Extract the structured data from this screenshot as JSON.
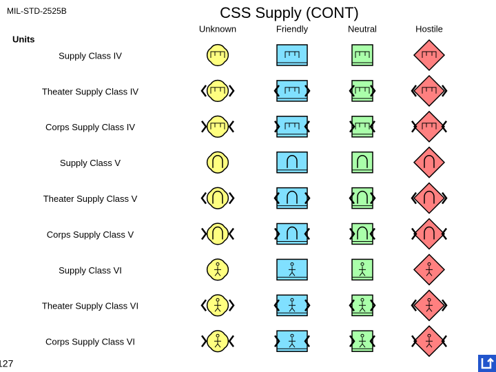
{
  "header": {
    "standard": "MIL-STD-2525B",
    "title": "CSS Supply (CONT)"
  },
  "columns": [
    "Unknown",
    "Friendly",
    "Neutral",
    "Hostile"
  ],
  "section": "Units",
  "rows": [
    "Supply Class IV",
    "Theater Supply Class IV",
    "Corps Supply Class IV",
    "Supply Class V",
    "Theater Supply Class V",
    "Corps Supply Class V",
    "Supply Class VI",
    "Theater Supply Class VI",
    "Corps Supply Class VI"
  ],
  "page_number": "127"
}
